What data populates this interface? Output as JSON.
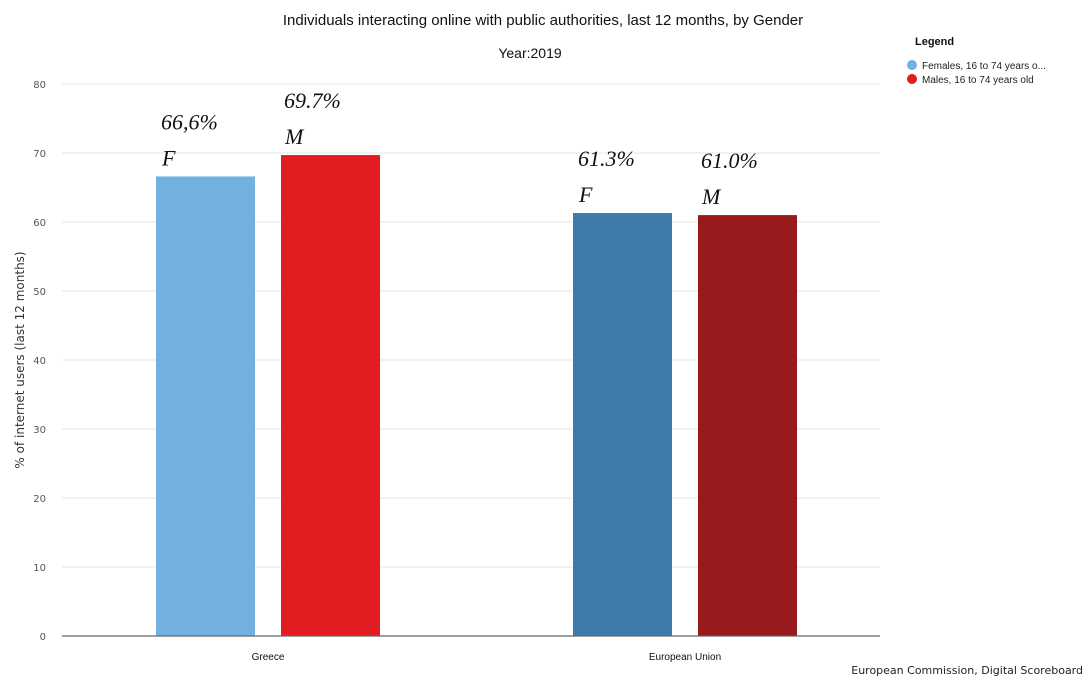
{
  "chart_data": {
    "type": "bar",
    "title": "Individuals interacting online with public authorities, last 12 months, by Gender",
    "subtitle": "Year:2019",
    "ylabel": "% of internet users (last 12 months)",
    "xlabel": "",
    "ylim": [
      0,
      80
    ],
    "yticks": [
      0,
      10,
      20,
      30,
      40,
      50,
      60,
      70,
      80
    ],
    "grid": true,
    "categories": [
      "Greece",
      "European Union"
    ],
    "series": [
      {
        "name": "Females, 16 to 74 years o...",
        "values": [
          66.6,
          61.3
        ]
      },
      {
        "name": "Males, 16 to 74 years old",
        "values": [
          69.7,
          61.0
        ]
      }
    ],
    "bar_colors": [
      [
        "#72b0e0",
        "#e21d22"
      ],
      [
        "#3e7bab",
        "#971a1c"
      ]
    ],
    "legend_colors": [
      "#72b0e0",
      "#e21d22"
    ],
    "legend": {
      "title": "Legend",
      "position": "top-right"
    },
    "annotations": [
      {
        "value_text": "66,6%",
        "gender_text": "F",
        "category": 0,
        "series": 0
      },
      {
        "value_text": "69.7%",
        "gender_text": "M",
        "category": 0,
        "series": 1
      },
      {
        "value_text": "61.3%",
        "gender_text": "F",
        "category": 1,
        "series": 0
      },
      {
        "value_text": "61.0%",
        "gender_text": "M",
        "category": 1,
        "series": 1
      }
    ]
  },
  "source": "European Commission, Digital Scoreboard"
}
